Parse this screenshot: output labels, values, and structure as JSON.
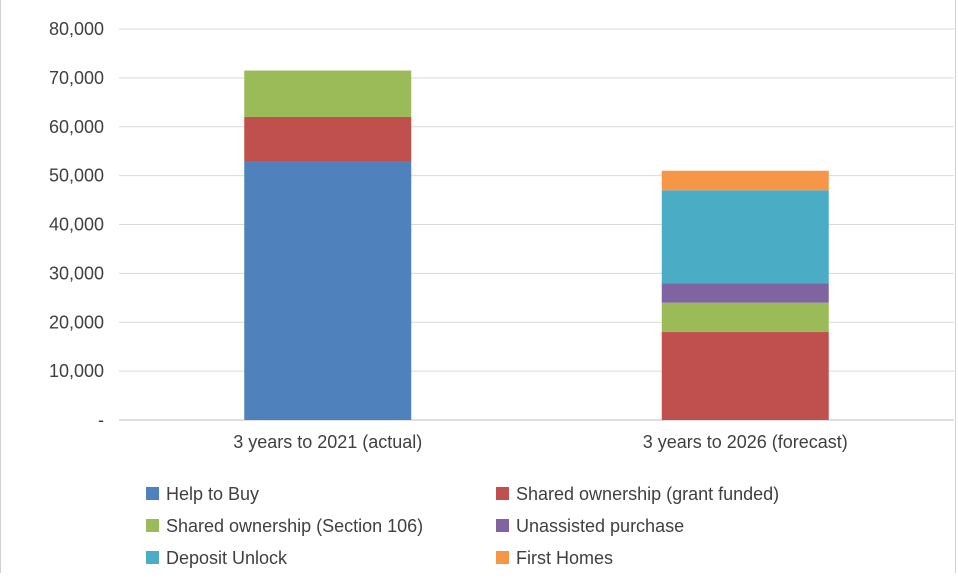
{
  "chart_data": {
    "type": "bar",
    "stacked": true,
    "title": "",
    "categories": [
      "3 years to 2021 (actual)",
      "3 years to 2026 (forecast)"
    ],
    "ylim": [
      0,
      80000
    ],
    "yticks": [
      "-",
      "10,000",
      "20,000",
      "30,000",
      "40,000",
      "50,000",
      "60,000",
      "70,000",
      "80,000"
    ],
    "grid": true,
    "legend_position": "bottom",
    "series": [
      {
        "name": "Help to Buy",
        "color": "#4f81bd",
        "values": [
          52800,
          0
        ]
      },
      {
        "name": "Shared ownership (grant funded)",
        "color": "#c0504d",
        "values": [
          9200,
          18000
        ]
      },
      {
        "name": "Shared ownership (Section 106)",
        "color": "#9bbb59",
        "values": [
          9500,
          6000
        ]
      },
      {
        "name": "Unassisted purchase",
        "color": "#8064a2",
        "values": [
          0,
          4000
        ]
      },
      {
        "name": "Deposit Unlock",
        "color": "#4bacc6",
        "values": [
          0,
          19000
        ]
      },
      {
        "name": "First Homes",
        "color": "#f79646",
        "values": [
          0,
          4000
        ]
      }
    ]
  }
}
